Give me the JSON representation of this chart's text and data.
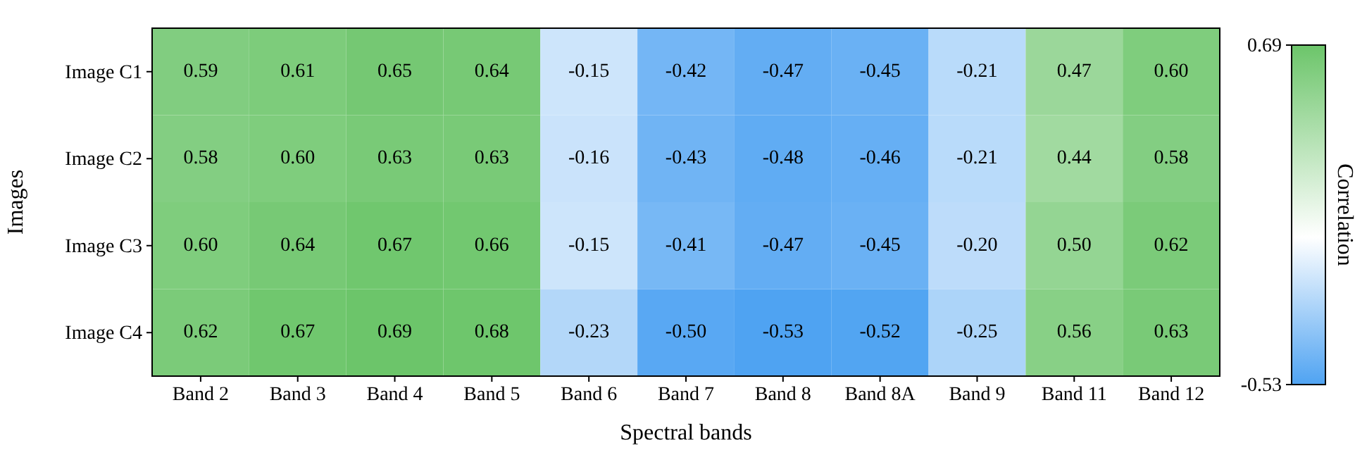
{
  "chart_data": {
    "type": "heatmap",
    "xlabel": "Spectral bands",
    "ylabel": "Images",
    "clabel": "Correlation",
    "categories": [
      "Band 2",
      "Band 3",
      "Band 4",
      "Band 5",
      "Band 6",
      "Band 7",
      "Band 8",
      "Band 8A",
      "Band 9",
      "Band 11",
      "Band 12"
    ],
    "y_categories": [
      "Image C1",
      "Image C2",
      "Image C3",
      "Image C4"
    ],
    "cells": [
      [
        0.59,
        0.61,
        0.65,
        0.64,
        -0.15,
        -0.42,
        -0.47,
        -0.45,
        -0.21,
        0.47,
        0.6
      ],
      [
        0.58,
        0.6,
        0.63,
        0.63,
        -0.16,
        -0.43,
        -0.48,
        -0.46,
        -0.21,
        0.44,
        0.58
      ],
      [
        0.6,
        0.64,
        0.67,
        0.66,
        -0.15,
        -0.41,
        -0.47,
        -0.45,
        -0.2,
        0.5,
        0.62
      ],
      [
        0.62,
        0.67,
        0.69,
        0.68,
        -0.23,
        -0.5,
        -0.53,
        -0.52,
        -0.25,
        0.56,
        0.63
      ]
    ],
    "cell_labels": [
      [
        "0.59",
        "0.61",
        "0.65",
        "0.64",
        "-0.15",
        "-0.42",
        "-0.47",
        "-0.45",
        "-0.21",
        "0.47",
        "0.60"
      ],
      [
        "0.58",
        "0.60",
        "0.63",
        "0.63",
        "-0.16",
        "-0.43",
        "-0.48",
        "-0.46",
        "-0.21",
        "0.44",
        "0.58"
      ],
      [
        "0.60",
        "0.64",
        "0.67",
        "0.66",
        "-0.15",
        "-0.41",
        "-0.47",
        "-0.45",
        "-0.20",
        "0.50",
        "0.62"
      ],
      [
        "0.62",
        "0.67",
        "0.69",
        "0.68",
        "-0.23",
        "-0.50",
        "-0.53",
        "-0.52",
        "-0.25",
        "0.56",
        "0.63"
      ]
    ],
    "clim": [
      -0.53,
      0.69
    ],
    "cticks": [
      {
        "value": -0.53,
        "label": "-0.53"
      },
      {
        "value": 0.69,
        "label": "0.69"
      }
    ],
    "colors": [
      "#4fa3f2",
      "#ffffff",
      "#6cc56a"
    ]
  }
}
